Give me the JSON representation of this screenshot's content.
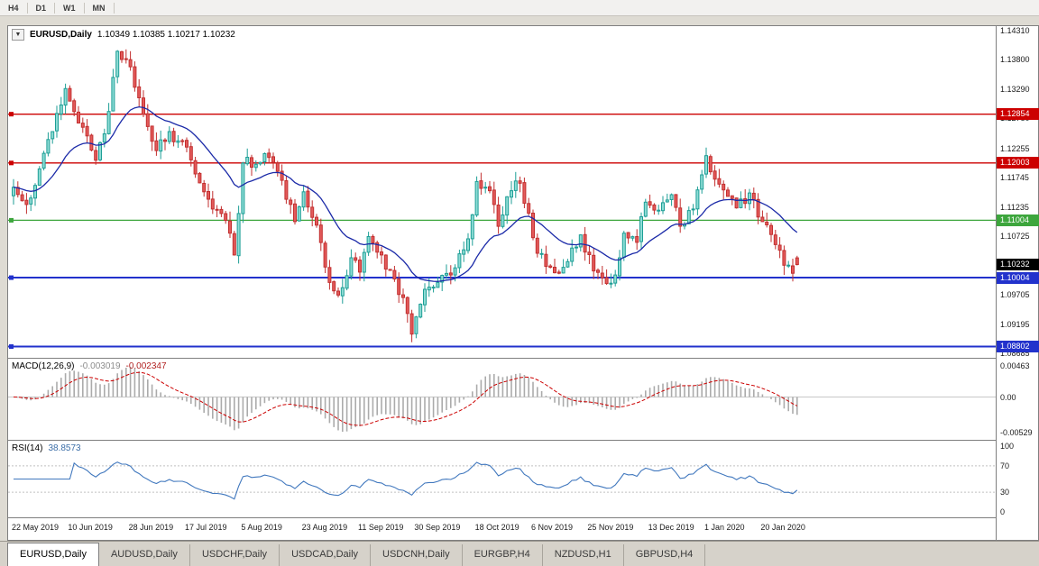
{
  "toolbar": {
    "timeframe_buttons": [
      "H4",
      "D1",
      "W1",
      "MN"
    ]
  },
  "chart_header": {
    "symbol": "EURUSD,Daily",
    "ohlc_text": "1.10349 1.10385 1.10217 1.10232"
  },
  "colors": {
    "bull_fill": "#8EDCD5",
    "bull_stroke": "#1D9E96",
    "bear_fill": "#E35B5B",
    "bear_stroke": "#C22F2F",
    "ma_line": "#1B2AA8",
    "line_red": "#CC0000",
    "line_green": "#3DA63D",
    "line_blue": "#2232CC",
    "current_tag_bg": "#000000",
    "macd_hist": "#ABABAB",
    "macd_signal": "#CC0000",
    "rsi_line": "#4178BE"
  },
  "chart_data": [
    {
      "type": "candlestick",
      "title": "EURUSD,Daily",
      "bars_total": 182,
      "ylim": [
        1.08685,
        1.1431
      ],
      "y_axis_ticks": [
        "1.14310",
        "1.13800",
        "1.13290",
        "1.12780",
        "1.12255",
        "1.11745",
        "1.11235",
        "1.10725",
        "1.10215",
        "1.09705",
        "1.09195",
        "1.08685"
      ],
      "x_axis_labels": [
        {
          "text": "22 May 2019",
          "bar": 0
        },
        {
          "text": "10 Jun 2019",
          "bar": 13
        },
        {
          "text": "28 Jun 2019",
          "bar": 27
        },
        {
          "text": "17 Jul 2019",
          "bar": 40
        },
        {
          "text": "5 Aug 2019",
          "bar": 53
        },
        {
          "text": "23 Aug 2019",
          "bar": 67
        },
        {
          "text": "11 Sep 2019",
          "bar": 80
        },
        {
          "text": "30 Sep 2019",
          "bar": 93
        },
        {
          "text": "18 Oct 2019",
          "bar": 107
        },
        {
          "text": "6 Nov 2019",
          "bar": 120
        },
        {
          "text": "25 Nov 2019",
          "bar": 133
        },
        {
          "text": "13 Dec 2019",
          "bar": 147
        },
        {
          "text": "1 Jan 2020",
          "bar": 160
        },
        {
          "text": "20 Jan 2020",
          "bar": 173
        }
      ],
      "close_anchors": [
        [
          0,
          1.1158
        ],
        [
          3,
          1.1128
        ],
        [
          6,
          1.119
        ],
        [
          9,
          1.1255
        ],
        [
          12,
          1.133
        ],
        [
          15,
          1.127
        ],
        [
          19,
          1.1205
        ],
        [
          22,
          1.129
        ],
        [
          24,
          1.1395
        ],
        [
          27,
          1.1368
        ],
        [
          30,
          1.1285
        ],
        [
          33,
          1.1222
        ],
        [
          36,
          1.1255
        ],
        [
          40,
          1.1228
        ],
        [
          44,
          1.115
        ],
        [
          47,
          1.1118
        ],
        [
          50,
          1.1078
        ],
        [
          51,
          1.104
        ],
        [
          53,
          1.12
        ],
        [
          56,
          1.1198
        ],
        [
          59,
          1.121
        ],
        [
          62,
          1.117
        ],
        [
          65,
          1.1098
        ],
        [
          67,
          1.115
        ],
        [
          70,
          1.1092
        ],
        [
          73,
          1.0992
        ],
        [
          75,
          1.097
        ],
        [
          78,
          1.1035
        ],
        [
          80,
          1.101
        ],
        [
          82,
          1.1072
        ],
        [
          85,
          1.104
        ],
        [
          88,
          1.0998
        ],
        [
          91,
          1.0938
        ],
        [
          92,
          1.0902
        ],
        [
          93,
          1.0932
        ],
        [
          95,
          1.098
        ],
        [
          98,
          1.0992
        ],
        [
          101,
          1.1005
        ],
        [
          103,
          1.1042
        ],
        [
          105,
          1.1068
        ],
        [
          107,
          1.1168
        ],
        [
          110,
          1.1152
        ],
        [
          112,
          1.109
        ],
        [
          115,
          1.1152
        ],
        [
          117,
          1.1165
        ],
        [
          120,
          1.107
        ],
        [
          123,
          1.102
        ],
        [
          126,
          1.1008
        ],
        [
          129,
          1.1052
        ],
        [
          131,
          1.1075
        ],
        [
          134,
          1.1012
        ],
        [
          137,
          1.099
        ],
        [
          139,
          1.1005
        ],
        [
          141,
          1.1078
        ],
        [
          144,
          1.1062
        ],
        [
          146,
          1.1132
        ],
        [
          149,
          1.1118
        ],
        [
          152,
          1.1145
        ],
        [
          154,
          1.109
        ],
        [
          157,
          1.112
        ],
        [
          160,
          1.1213
        ],
        [
          162,
          1.1172
        ],
        [
          165,
          1.1142
        ],
        [
          167,
          1.1122
        ],
        [
          170,
          1.1148
        ],
        [
          173,
          1.1098
        ],
        [
          176,
          1.1058
        ],
        [
          178,
          1.1022
        ],
        [
          180,
          1.1008
        ],
        [
          181,
          1.10232
        ]
      ],
      "last_bar": {
        "open": 1.10349,
        "high": 1.10385,
        "low": 1.10217,
        "close": 1.10232
      },
      "price_lines": [
        {
          "value": 1.12854,
          "label": "1.12854",
          "color_key": "line_red"
        },
        {
          "value": 1.12003,
          "label": "1.12003",
          "color_key": "line_red"
        },
        {
          "value": 1.11004,
          "label": "1.11004",
          "color_key": "line_green"
        },
        {
          "value": 1.10004,
          "label": "1.10004",
          "color_key": "line_blue"
        },
        {
          "value": 1.08802,
          "label": "1.08802",
          "color_key": "line_blue"
        }
      ],
      "current_price": {
        "value": 1.10232,
        "label": "1.10232"
      },
      "moving_average_period": 20
    },
    {
      "type": "macd",
      "title": "MACD(12,26,9)",
      "params": [
        12,
        26,
        9
      ],
      "value_main": "-0.003019",
      "value_signal": "-0.002347",
      "axis_ticks": [
        "0.00463",
        "0.00",
        "-0.00529"
      ],
      "ylim": [
        -0.00529,
        0.00463
      ]
    },
    {
      "type": "rsi",
      "title": "RSI(14)",
      "period": 14,
      "value": "38.8573",
      "axis_ticks": [
        "100",
        "70",
        "30",
        "0"
      ],
      "levels": [
        70,
        30
      ],
      "ylim": [
        0,
        100
      ]
    }
  ],
  "tabs": [
    {
      "label": "EURUSD,Daily",
      "active": true
    },
    {
      "label": "AUDUSD,Daily",
      "active": false
    },
    {
      "label": "USDCHF,Daily",
      "active": false
    },
    {
      "label": "USDCAD,Daily",
      "active": false
    },
    {
      "label": "USDCNH,Daily",
      "active": false
    },
    {
      "label": "EURGBP,H4",
      "active": false
    },
    {
      "label": "NZDUSD,H1",
      "active": false
    },
    {
      "label": "GBPUSD,H4",
      "active": false
    }
  ]
}
